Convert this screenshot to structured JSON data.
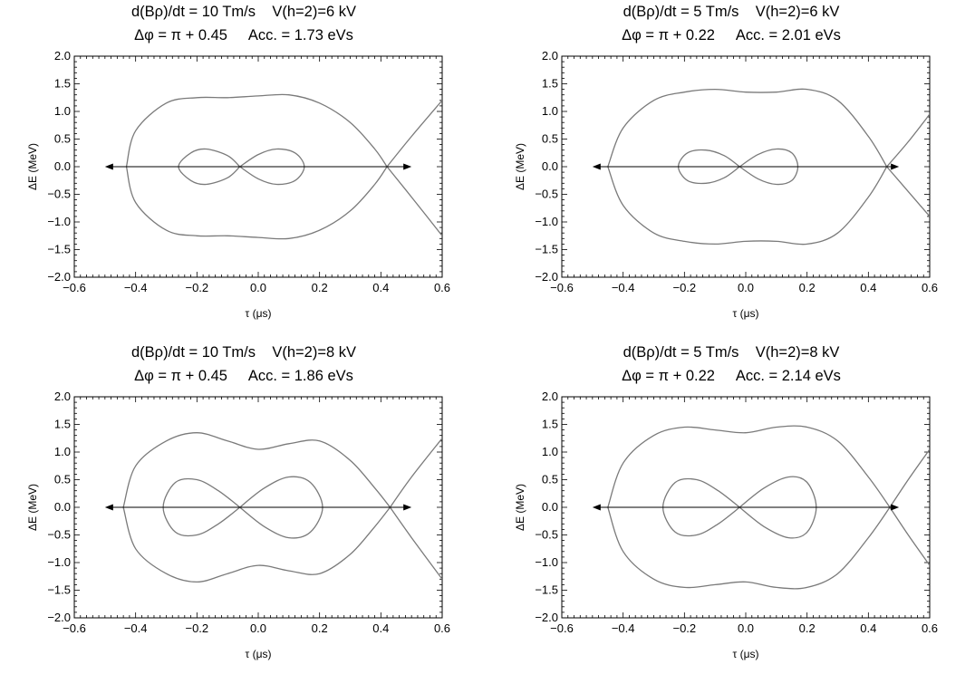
{
  "chart_data": [
    {
      "type": "line",
      "title_line1": "d(Bρ)/dt = 10 Tm/s    V(h=2)=6 kV",
      "title_line2": "Δφ = π + 0.45     Acc. = 1.73 eVs",
      "xlabel": "τ (μs)",
      "ylabel": "ΔE (MeV)",
      "xlim": [
        -0.6,
        0.6
      ],
      "ylim": [
        -2.0,
        2.0
      ],
      "xticks": [
        "−0.6",
        "−0.4",
        "−0.2",
        "0.0",
        "0.2",
        "0.4",
        "0.6"
      ],
      "yticks": [
        "2.0",
        "1.5",
        "1.0",
        "0.5",
        "0.0",
        "−0.5",
        "−1.0",
        "−1.5",
        "−2.0"
      ],
      "series": [
        {
          "x": [
            -0.43,
            -0.4,
            -0.3,
            -0.2,
            -0.1,
            0.0,
            0.1,
            0.2,
            0.3,
            0.38,
            0.42
          ],
          "y": [
            0.0,
            0.65,
            1.15,
            1.25,
            1.25,
            1.28,
            1.3,
            1.15,
            0.8,
            0.32,
            0.0
          ]
        },
        {
          "x": [
            -0.43,
            -0.4,
            -0.3,
            -0.2,
            -0.1,
            0.0,
            0.1,
            0.2,
            0.3,
            0.38,
            0.42
          ],
          "y": [
            0.0,
            -0.65,
            -1.15,
            -1.25,
            -1.25,
            -1.28,
            -1.3,
            -1.15,
            -0.8,
            -0.32,
            0.0
          ]
        },
        {
          "x": [
            0.42,
            0.5,
            0.6
          ],
          "y": [
            0.0,
            0.55,
            1.2
          ]
        },
        {
          "x": [
            0.42,
            0.5,
            0.6
          ],
          "y": [
            0.0,
            -0.55,
            -1.25
          ]
        },
        {
          "x": [
            -0.06,
            -0.1,
            -0.17,
            -0.22,
            -0.26,
            -0.22,
            -0.17,
            -0.1,
            -0.06
          ],
          "y": [
            0.0,
            0.2,
            0.32,
            0.25,
            0.0,
            -0.25,
            -0.32,
            -0.2,
            0.0
          ]
        },
        {
          "x": [
            -0.06,
            0.0,
            0.06,
            0.12,
            0.15,
            0.12,
            0.06,
            0.0,
            -0.06
          ],
          "y": [
            0.0,
            0.22,
            0.32,
            0.25,
            0.0,
            -0.25,
            -0.32,
            -0.22,
            0.0
          ]
        }
      ],
      "arrow": {
        "x": [
          -0.5,
          0.5
        ],
        "y": 0.0
      }
    },
    {
      "type": "line",
      "title_line1": "d(Bρ)/dt = 5 Tm/s    V(h=2)=6 kV",
      "title_line2": "Δφ = π + 0.22     Acc. = 2.01 eVs",
      "xlabel": "τ (μs)",
      "ylabel": "ΔE (MeV)",
      "xlim": [
        -0.6,
        0.6
      ],
      "ylim": [
        -2.0,
        2.0
      ],
      "xticks": [
        "−0.6",
        "−0.4",
        "−0.2",
        "0.0",
        "0.2",
        "0.4",
        "0.6"
      ],
      "yticks": [
        "2.0",
        "1.5",
        "1.0",
        "0.5",
        "0.0",
        "−0.5",
        "−1.0",
        "−1.5",
        "−2.0"
      ],
      "series": [
        {
          "x": [
            -0.45,
            -0.4,
            -0.3,
            -0.2,
            -0.1,
            0.0,
            0.1,
            0.2,
            0.3,
            0.4,
            0.46
          ],
          "y": [
            0.0,
            0.7,
            1.2,
            1.35,
            1.4,
            1.35,
            1.35,
            1.4,
            1.2,
            0.55,
            0.0
          ]
        },
        {
          "x": [
            -0.45,
            -0.4,
            -0.3,
            -0.2,
            -0.1,
            0.0,
            0.1,
            0.2,
            0.3,
            0.4,
            0.46
          ],
          "y": [
            0.0,
            -0.7,
            -1.2,
            -1.35,
            -1.4,
            -1.35,
            -1.35,
            -1.4,
            -1.2,
            -0.55,
            0.0
          ]
        },
        {
          "x": [
            0.46,
            0.53,
            0.6
          ],
          "y": [
            0.0,
            0.45,
            0.95
          ]
        },
        {
          "x": [
            0.46,
            0.53,
            0.6
          ],
          "y": [
            0.0,
            -0.45,
            -0.9
          ]
        },
        {
          "x": [
            -0.02,
            -0.07,
            -0.13,
            -0.19,
            -0.22,
            -0.19,
            -0.13,
            -0.07,
            -0.02
          ],
          "y": [
            0.0,
            0.2,
            0.3,
            0.25,
            0.0,
            -0.25,
            -0.3,
            -0.2,
            0.0
          ]
        },
        {
          "x": [
            -0.02,
            0.04,
            0.1,
            0.15,
            0.17,
            0.15,
            0.1,
            0.04,
            -0.02
          ],
          "y": [
            0.0,
            0.22,
            0.32,
            0.25,
            0.0,
            -0.25,
            -0.32,
            -0.22,
            0.0
          ]
        }
      ],
      "arrow": {
        "x": [
          -0.5,
          0.5
        ],
        "y": 0.0
      }
    },
    {
      "type": "line",
      "title_line1": "d(Bρ)/dt = 10 Tm/s    V(h=2)=8 kV",
      "title_line2": "Δφ = π + 0.45     Acc. = 1.86 eVs",
      "xlabel": "τ (μs)",
      "ylabel": "ΔE (MeV)",
      "xlim": [
        -0.6,
        0.6
      ],
      "ylim": [
        -2.0,
        2.0
      ],
      "xticks": [
        "−0.6",
        "−0.4",
        "−0.2",
        "0.0",
        "0.2",
        "0.4",
        "0.6"
      ],
      "yticks": [
        "2.0",
        "1.5",
        "1.0",
        "0.5",
        "0.0",
        "−0.5",
        "−1.0",
        "−1.5",
        "−2.0"
      ],
      "series": [
        {
          "x": [
            -0.44,
            -0.4,
            -0.3,
            -0.2,
            -0.1,
            0.0,
            0.1,
            0.2,
            0.3,
            0.38,
            0.43
          ],
          "y": [
            0.0,
            0.75,
            1.2,
            1.35,
            1.2,
            1.05,
            1.15,
            1.2,
            0.85,
            0.35,
            0.0
          ]
        },
        {
          "x": [
            -0.44,
            -0.4,
            -0.3,
            -0.2,
            -0.1,
            0.0,
            0.1,
            0.2,
            0.3,
            0.38,
            0.43
          ],
          "y": [
            0.0,
            -0.75,
            -1.2,
            -1.35,
            -1.2,
            -1.05,
            -1.15,
            -1.2,
            -0.85,
            -0.35,
            0.0
          ]
        },
        {
          "x": [
            0.43,
            0.5,
            0.6
          ],
          "y": [
            0.0,
            0.55,
            1.25
          ]
        },
        {
          "x": [
            0.43,
            0.5,
            0.6
          ],
          "y": [
            0.0,
            -0.55,
            -1.3
          ]
        },
        {
          "x": [
            -0.06,
            -0.13,
            -0.2,
            -0.27,
            -0.31,
            -0.27,
            -0.2,
            -0.13,
            -0.06
          ],
          "y": [
            0.0,
            0.3,
            0.5,
            0.45,
            0.0,
            -0.45,
            -0.5,
            -0.3,
            0.0
          ]
        },
        {
          "x": [
            -0.06,
            0.02,
            0.1,
            0.17,
            0.21,
            0.17,
            0.1,
            0.02,
            -0.06
          ],
          "y": [
            0.0,
            0.35,
            0.55,
            0.45,
            0.0,
            -0.45,
            -0.55,
            -0.35,
            0.0
          ]
        }
      ],
      "arrow": {
        "x": [
          -0.5,
          0.5
        ],
        "y": 0.0
      }
    },
    {
      "type": "line",
      "title_line1": "d(Bρ)/dt = 5 Tm/s    V(h=2)=8 kV",
      "title_line2": "Δφ = π + 0.22     Acc. = 2.14 eVs",
      "xlabel": "τ (μs)",
      "ylabel": "ΔE (MeV)",
      "xlim": [
        -0.6,
        0.6
      ],
      "ylim": [
        -2.0,
        2.0
      ],
      "xticks": [
        "−0.6",
        "−0.4",
        "−0.2",
        "0.0",
        "0.2",
        "0.4",
        "0.6"
      ],
      "yticks": [
        "2.0",
        "1.5",
        "1.0",
        "0.5",
        "0.0",
        "−0.5",
        "−1.0",
        "−1.5",
        "−2.0"
      ],
      "series": [
        {
          "x": [
            -0.45,
            -0.4,
            -0.3,
            -0.2,
            -0.1,
            0.0,
            0.1,
            0.2,
            0.3,
            0.4,
            0.47
          ],
          "y": [
            0.0,
            0.8,
            1.3,
            1.45,
            1.4,
            1.35,
            1.45,
            1.45,
            1.2,
            0.55,
            0.0
          ]
        },
        {
          "x": [
            -0.45,
            -0.4,
            -0.3,
            -0.2,
            -0.1,
            0.0,
            0.1,
            0.2,
            0.3,
            0.4,
            0.47
          ],
          "y": [
            0.0,
            -0.8,
            -1.3,
            -1.45,
            -1.4,
            -1.35,
            -1.45,
            -1.45,
            -1.2,
            -0.55,
            0.0
          ]
        },
        {
          "x": [
            0.47,
            0.53,
            0.6
          ],
          "y": [
            0.0,
            0.5,
            1.05
          ]
        },
        {
          "x": [
            0.47,
            0.53,
            0.6
          ],
          "y": [
            0.0,
            -0.5,
            -1.05
          ]
        },
        {
          "x": [
            -0.02,
            -0.09,
            -0.16,
            -0.23,
            -0.27,
            -0.23,
            -0.16,
            -0.09,
            -0.02
          ],
          "y": [
            0.0,
            0.3,
            0.5,
            0.45,
            0.0,
            -0.45,
            -0.5,
            -0.3,
            0.0
          ]
        },
        {
          "x": [
            -0.02,
            0.06,
            0.14,
            0.2,
            0.23,
            0.2,
            0.14,
            0.06,
            -0.02
          ],
          "y": [
            0.0,
            0.35,
            0.55,
            0.45,
            0.0,
            -0.45,
            -0.55,
            -0.35,
            0.0
          ]
        }
      ],
      "arrow": {
        "x": [
          -0.5,
          0.5
        ],
        "y": 0.0
      }
    }
  ],
  "colors": {
    "curve": "#7a7a7a",
    "axis": "#000000",
    "arrow": "#000000",
    "background": "#ffffff"
  }
}
